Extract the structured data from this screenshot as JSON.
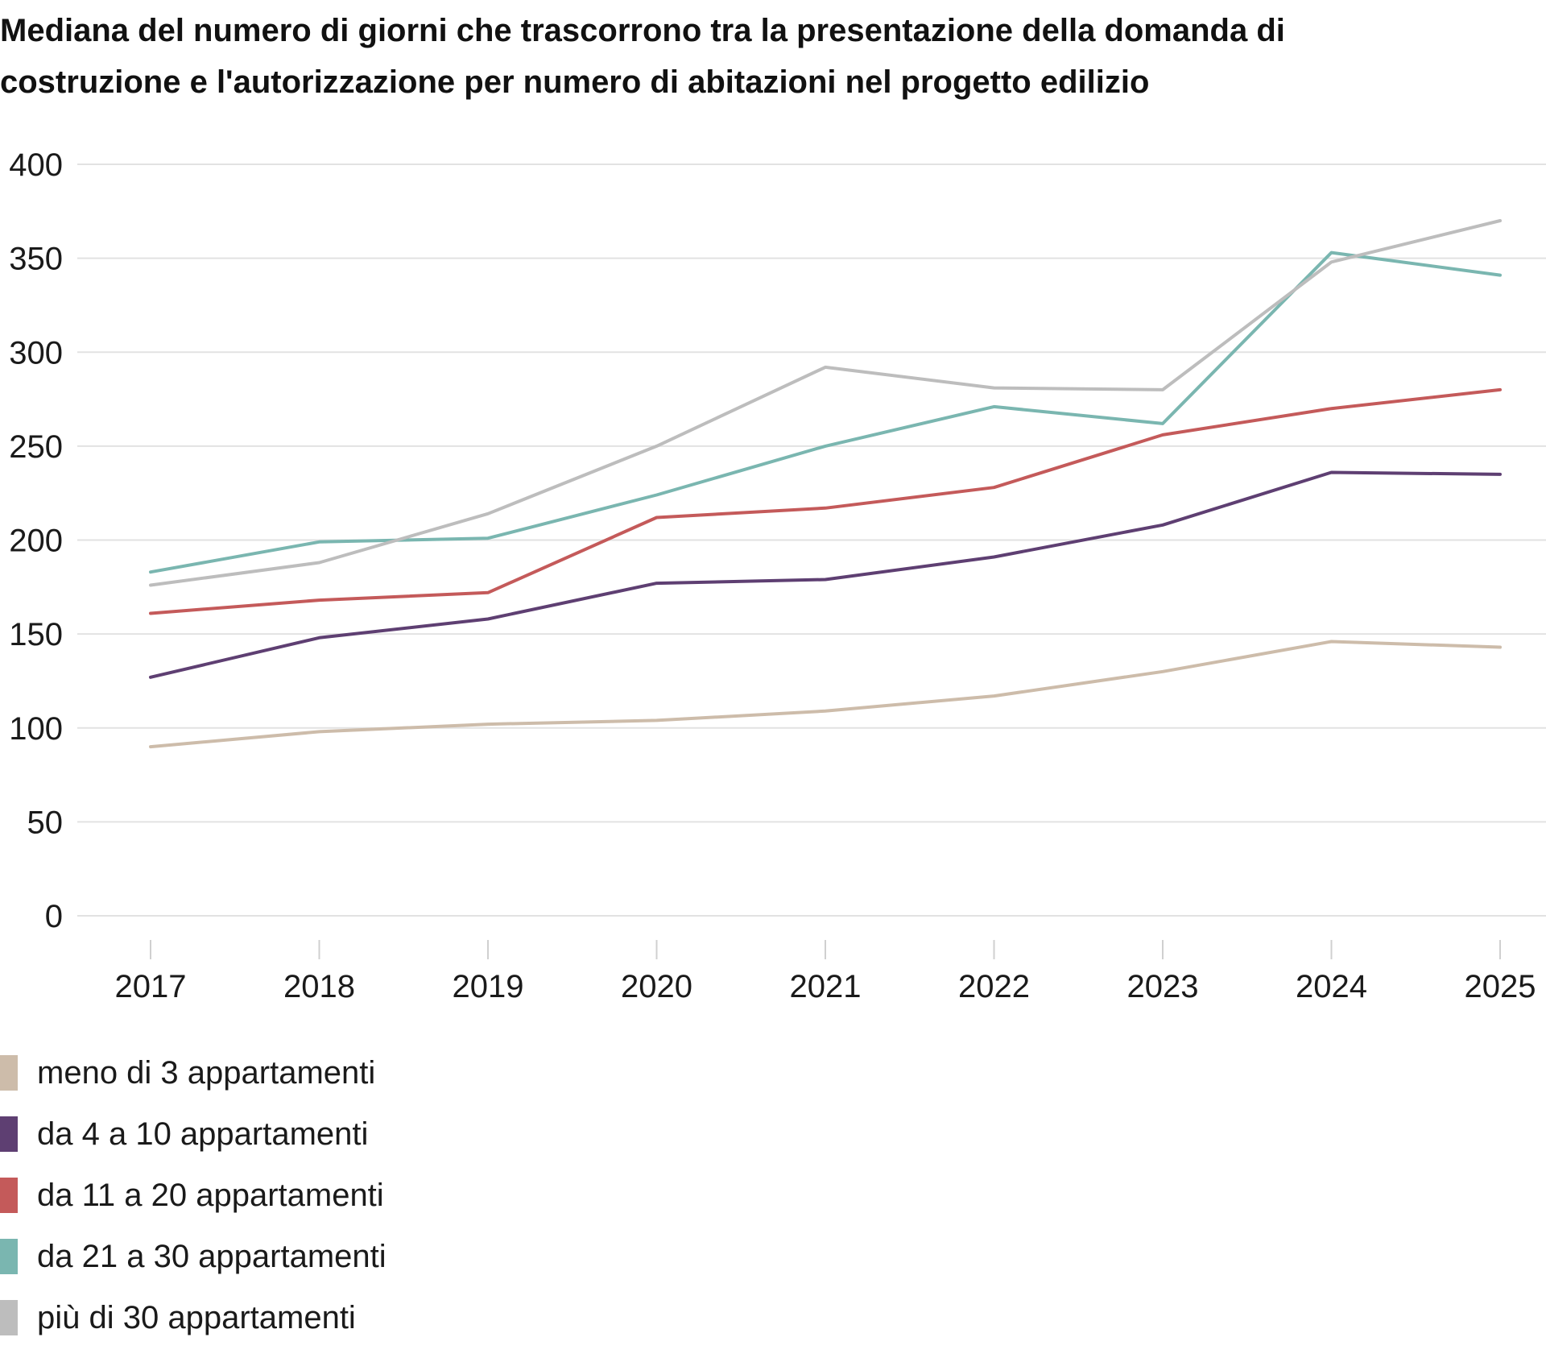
{
  "title_lines": [
    "Mediana del numero di giorni che trascorrono tra la presentazione della domanda di",
    "costruzione e l'autorizzazione per numero di abitazioni nel progetto edilizio"
  ],
  "chart_data": {
    "type": "line",
    "title": "Mediana del numero di giorni che trascorrono tra la presentazione della domanda di costruzione e l'autorizzazione per numero di abitazioni nel progetto edilizio",
    "xlabel": "",
    "ylabel": "",
    "x": [
      "2017",
      "2018",
      "2019",
      "2020",
      "2021",
      "2022",
      "2023",
      "2024",
      "2025"
    ],
    "ylim": [
      0,
      400
    ],
    "yticks": [
      "0",
      "50",
      "100",
      "150",
      "200",
      "250",
      "300",
      "350",
      "400"
    ],
    "grid": "horizontal",
    "legend_position": "bottom-left",
    "series": [
      {
        "name": "meno di 3 appartamenti",
        "color": "#cdbcaa",
        "values": [
          90,
          98,
          102,
          104,
          109,
          117,
          130,
          146,
          143
        ]
      },
      {
        "name": "da 4 a 10 appartamenti",
        "color": "#5e3f72",
        "values": [
          127,
          148,
          158,
          177,
          179,
          191,
          208,
          236,
          235
        ]
      },
      {
        "name": "da 11 a 20 appartamenti",
        "color": "#c45a5a",
        "values": [
          161,
          168,
          172,
          212,
          217,
          228,
          256,
          270,
          280
        ]
      },
      {
        "name": "da 21 a 30 appartamenti",
        "color": "#7ab6b0",
        "values": [
          183,
          199,
          201,
          224,
          250,
          271,
          262,
          353,
          341
        ]
      },
      {
        "name": "più di 30 appartamenti",
        "color": "#bdbdbd",
        "values": [
          176,
          188,
          214,
          250,
          292,
          281,
          280,
          348,
          370
        ]
      }
    ]
  }
}
